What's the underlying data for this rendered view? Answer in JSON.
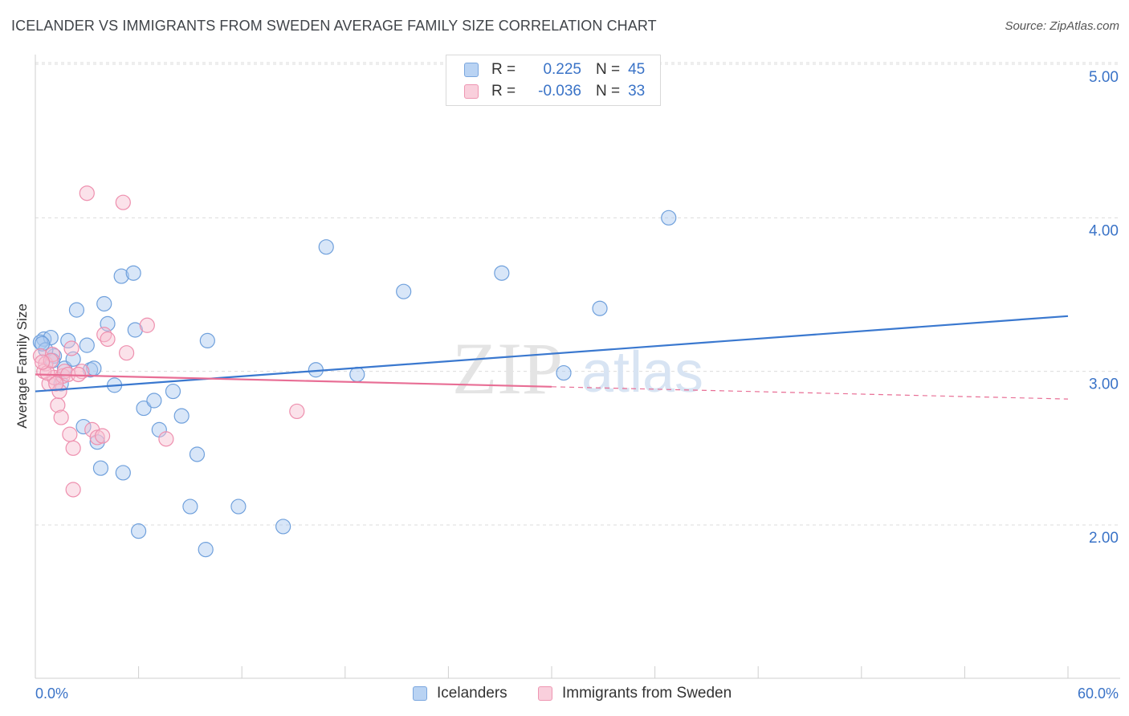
{
  "title": "ICELANDER VS IMMIGRANTS FROM SWEDEN AVERAGE FAMILY SIZE CORRELATION CHART",
  "source": "Source: ZipAtlas.com",
  "watermark": {
    "zip": "ZIP",
    "atlas": "atlas"
  },
  "legend": {
    "rows": [
      {
        "r_label": "R =",
        "r_value": "0.225",
        "n_label": "N =",
        "n_value": "45",
        "color": "#a9c8f0",
        "border": "#7aa6de"
      },
      {
        "r_label": "R =",
        "r_value": "-0.036",
        "n_label": "N =",
        "n_value": "33",
        "color": "#f6bfd0",
        "border": "#ee96b2"
      }
    ]
  },
  "chart_data": {
    "type": "scatter",
    "title": "ICELANDER VS IMMIGRANTS FROM SWEDEN AVERAGE FAMILY SIZE CORRELATION CHART",
    "xlabel": "",
    "ylabel": "Average Family Size",
    "xlim": [
      0,
      60
    ],
    "ylim": [
      1.0,
      5.2
    ],
    "x_tick_labels": [
      "0.0%",
      "60.0%"
    ],
    "y_ticks": [
      2.0,
      3.0,
      4.0,
      5.0
    ],
    "y_tick_labels": [
      "2.00",
      "3.00",
      "4.00",
      "5.00"
    ],
    "grid": "horizontal dashed",
    "series": [
      {
        "name": "Icelanders",
        "color": "#6fa0dc",
        "fill": "rgba(169,200,240,0.45)",
        "trend": {
          "x0": 0,
          "y0": 2.87,
          "x1": 60,
          "y1": 3.36,
          "color": "#3a78cf"
        },
        "points": [
          [
            0.5,
            3.21
          ],
          [
            0.9,
            3.22
          ],
          [
            1.1,
            3.1
          ],
          [
            1.5,
            2.92
          ],
          [
            1.7,
            3.02
          ],
          [
            1.9,
            3.2
          ],
          [
            2.2,
            3.08
          ],
          [
            2.4,
            3.4
          ],
          [
            2.8,
            2.64
          ],
          [
            3.0,
            3.17
          ],
          [
            3.2,
            3.01
          ],
          [
            3.4,
            3.02
          ],
          [
            3.6,
            2.54
          ],
          [
            3.8,
            2.37
          ],
          [
            4.0,
            3.44
          ],
          [
            4.2,
            3.31
          ],
          [
            4.6,
            2.91
          ],
          [
            5.0,
            3.62
          ],
          [
            5.1,
            2.34
          ],
          [
            5.7,
            3.64
          ],
          [
            5.8,
            3.27
          ],
          [
            6.0,
            1.96
          ],
          [
            6.3,
            2.76
          ],
          [
            6.9,
            2.81
          ],
          [
            7.2,
            2.62
          ],
          [
            8.0,
            2.87
          ],
          [
            8.5,
            2.71
          ],
          [
            9.0,
            2.12
          ],
          [
            9.4,
            2.46
          ],
          [
            9.9,
            1.84
          ],
          [
            10.0,
            3.2
          ],
          [
            11.8,
            2.12
          ],
          [
            14.4,
            1.99
          ],
          [
            16.3,
            3.01
          ],
          [
            16.9,
            3.81
          ],
          [
            18.7,
            2.98
          ],
          [
            21.4,
            3.52
          ],
          [
            27.1,
            3.64
          ],
          [
            30.7,
            2.99
          ],
          [
            32.8,
            3.41
          ],
          [
            36.8,
            4.0
          ],
          [
            0.3,
            3.19
          ],
          [
            0.6,
            3.14
          ],
          [
            1.0,
            3.07
          ],
          [
            0.4,
            3.18
          ]
        ]
      },
      {
        "name": "Immigrants from Sweden",
        "color": "#ee8fae",
        "fill": "rgba(246,191,208,0.45)",
        "trend": {
          "x0": 0,
          "y0": 2.98,
          "x1": 30,
          "y1": 2.9,
          "x2": 60,
          "y2": 2.82,
          "color": "#e86e95"
        },
        "points": [
          [
            0.3,
            3.1
          ],
          [
            0.6,
            3.05
          ],
          [
            0.8,
            2.92
          ],
          [
            1.0,
            3.11
          ],
          [
            1.1,
            2.96
          ],
          [
            1.3,
            2.78
          ],
          [
            1.4,
            2.87
          ],
          [
            1.5,
            2.7
          ],
          [
            1.6,
            2.97
          ],
          [
            1.7,
            3.0
          ],
          [
            2.0,
            2.59
          ],
          [
            2.1,
            3.15
          ],
          [
            2.2,
            2.5
          ],
          [
            2.2,
            2.23
          ],
          [
            2.7,
            3.0
          ],
          [
            3.0,
            4.16
          ],
          [
            3.3,
            2.62
          ],
          [
            3.6,
            2.57
          ],
          [
            3.9,
            2.58
          ],
          [
            4.0,
            3.24
          ],
          [
            4.2,
            3.21
          ],
          [
            5.1,
            4.1
          ],
          [
            5.3,
            3.12
          ],
          [
            6.5,
            3.3
          ],
          [
            7.6,
            2.56
          ],
          [
            15.2,
            2.74
          ],
          [
            0.5,
            3.0
          ],
          [
            0.7,
            2.99
          ],
          [
            0.9,
            3.07
          ],
          [
            1.2,
            2.92
          ],
          [
            1.9,
            2.98
          ],
          [
            2.5,
            2.98
          ],
          [
            0.4,
            3.06
          ]
        ]
      }
    ]
  }
}
